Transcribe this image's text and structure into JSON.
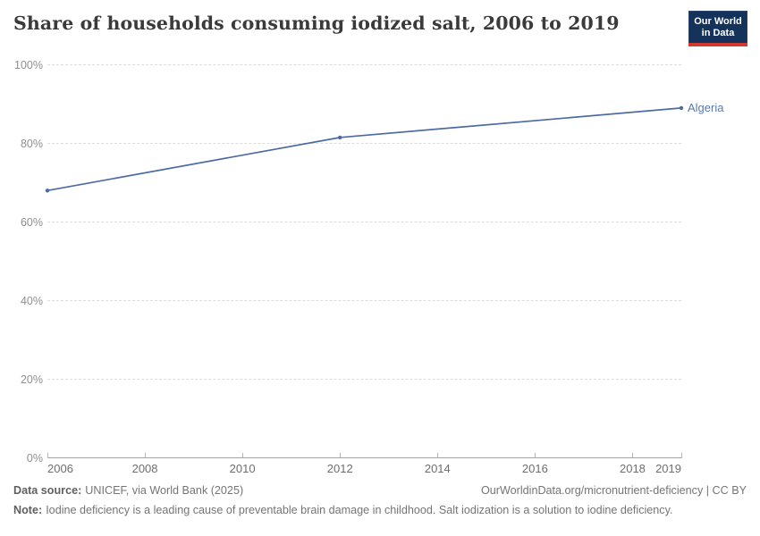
{
  "header": {
    "title": "Share of households consuming iodized salt, 2006 to 2019",
    "logo": {
      "line1": "Our World",
      "line2": "in Data",
      "bg_color": "#14325a",
      "accent_color": "#d4392e"
    }
  },
  "chart_data": {
    "type": "line",
    "title": "Share of households consuming iodized salt, 2006 to 2019",
    "series": [
      {
        "name": "Algeria",
        "color": "#4c6ba2",
        "points": [
          {
            "x": 2006,
            "y": 68
          },
          {
            "x": 2012,
            "y": 81.5
          },
          {
            "x": 2019,
            "y": 89
          }
        ]
      }
    ],
    "xlim": [
      2006,
      2019
    ],
    "ylim": [
      0,
      100
    ],
    "grid": "horizontal-dashed",
    "legend_position": "end-of-line-label",
    "yticks": [
      {
        "value": 0,
        "label": "0%"
      },
      {
        "value": 20,
        "label": "20%"
      },
      {
        "value": 40,
        "label": "40%"
      },
      {
        "value": 60,
        "label": "60%"
      },
      {
        "value": 80,
        "label": "80%"
      },
      {
        "value": 100,
        "label": "100%"
      }
    ],
    "xticks": [
      {
        "value": 2006,
        "label": "2006"
      },
      {
        "value": 2008,
        "label": "2008"
      },
      {
        "value": 2010,
        "label": "2010"
      },
      {
        "value": 2012,
        "label": "2012"
      },
      {
        "value": 2014,
        "label": "2014"
      },
      {
        "value": 2016,
        "label": "2016"
      },
      {
        "value": 2018,
        "label": "2018"
      },
      {
        "value": 2019,
        "label": "2019"
      }
    ]
  },
  "colors": {
    "line": "#4c6ba2",
    "entity_label": "#5878ae",
    "grid": "#dcdcdc",
    "axis": "#a5a5a5",
    "ytick_label": "#8f8f8f",
    "xtick_label": "#6e6e6e",
    "title": "#3a3a3a",
    "footer": "#757575",
    "logo_navy": "#14325a",
    "logo_red": "#d4392e"
  },
  "footer": {
    "datasource_label": "Data source:",
    "datasource_text": "UNICEF, via World Bank (2025)",
    "url_text": "OurWorldinData.org/micronutrient-deficiency | CC BY",
    "note_label": "Note:",
    "note_text": "Iodine deficiency is a leading cause of preventable brain damage in childhood. Salt iodization is a solution to iodine deficiency."
  }
}
